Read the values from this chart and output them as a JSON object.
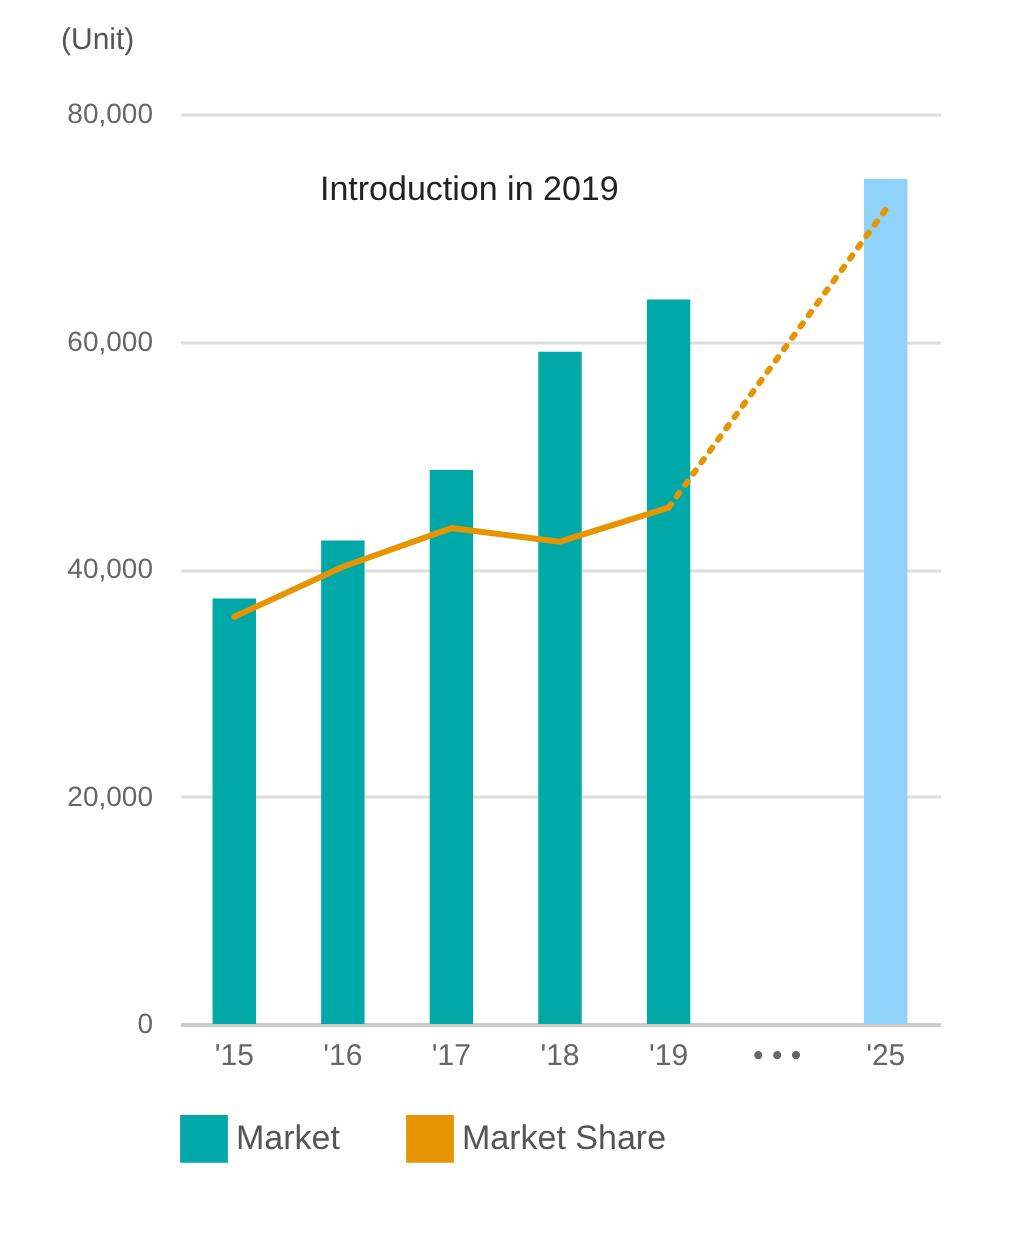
{
  "chart_data": {
    "type": "bar",
    "ylabel": "(Unit)",
    "categories": [
      "'15",
      "'16",
      "'17",
      "'18",
      "'19",
      "• • •",
      "'25"
    ],
    "series": [
      {
        "name": "Market",
        "color": "#00a8a8",
        "colors": [
          "#00a8a8",
          "#00a8a8",
          "#00a8a8",
          "#00a8a8",
          "#00a8a8",
          "#00a8a8",
          "#8fd3fb"
        ],
        "values": [
          37400,
          42500,
          48700,
          59100,
          63700,
          null,
          74300
        ]
      },
      {
        "name": "Market Share",
        "type": "line",
        "color": "#e69500",
        "line_style": "solid",
        "values": [
          35800,
          40200,
          43600,
          42400,
          45400,
          null,
          null
        ]
      },
      {
        "type": "line",
        "color": "#e69500",
        "line_style": "dotted",
        "x": [
          "'19",
          "'25"
        ],
        "values": [
          45400,
          71600
        ]
      }
    ],
    "ylim": [
      0,
      80000
    ],
    "yticks": [
      0,
      {
        "value": 20000,
        "label": "20,000"
      },
      {
        "value": 40000,
        "label": "40,000"
      },
      {
        "value": 60000,
        "label": "60,000"
      },
      {
        "value": 80000,
        "label": "80,000"
      }
    ],
    "grid": "y",
    "legend": "bottom",
    "annotations": [
      "Introduction in 2019"
    ]
  }
}
